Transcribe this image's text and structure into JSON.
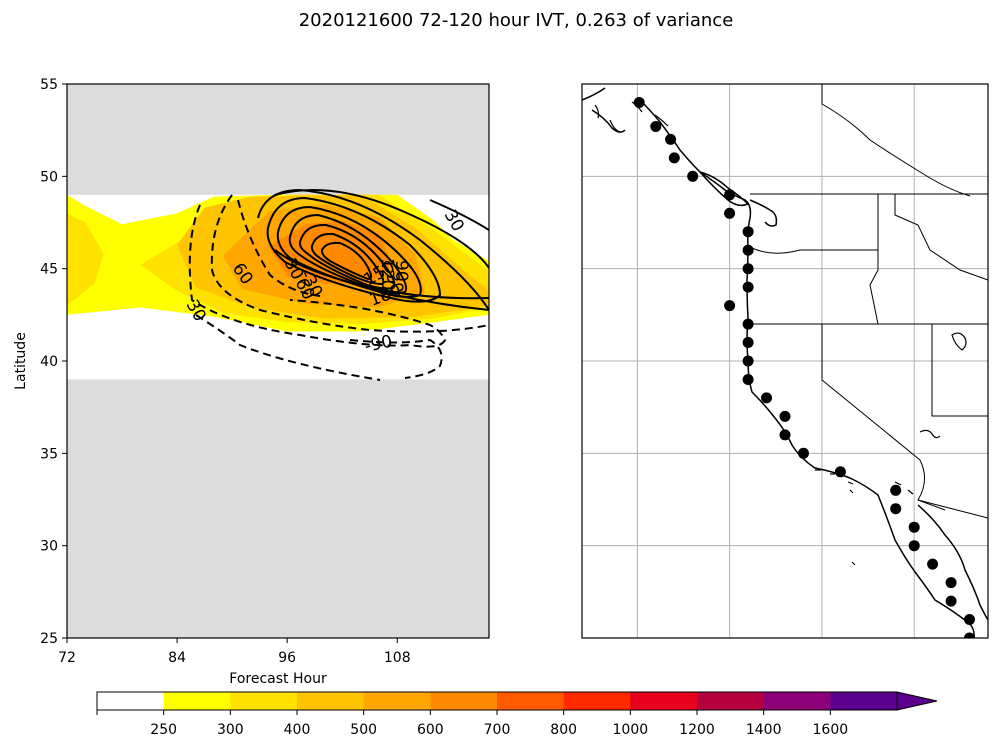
{
  "chart_data": [
    {
      "type": "contour",
      "title": "2020121600 72-120 hour IVT, 0.263 of variance",
      "xlabel": "Forecast Hour",
      "ylabel": "Latitude",
      "xlim": [
        72,
        118
      ],
      "ylim": [
        25,
        55
      ],
      "xticks": [
        72,
        84,
        96,
        108
      ],
      "yticks": [
        25,
        30,
        35,
        40,
        45,
        50,
        55
      ],
      "masked_background": "#dcdcdc",
      "data_band_lat": [
        39,
        49
      ],
      "filled_contours": [
        {
          "level": "250-300",
          "color": "#ffff00",
          "polygon": [
            [
              72,
              49
            ],
            [
              74,
              48.4
            ],
            [
              78,
              47.4
            ],
            [
              84,
              48
            ],
            [
              88,
              48.9
            ],
            [
              95,
              49
            ],
            [
              108,
              49
            ],
            [
              112,
              47.6
            ],
            [
              114,
              46.6
            ],
            [
              118,
              45.4
            ],
            [
              118,
              42.5
            ],
            [
              112,
              42.1
            ],
            [
              104,
              41.6
            ],
            [
              96,
              41.6
            ],
            [
              88,
              42.4
            ],
            [
              80,
              42.9
            ],
            [
              72,
              42.5
            ]
          ]
        },
        {
          "level": "300-400",
          "color": "#ffe100",
          "polygon": [
            [
              72,
              48
            ],
            [
              74,
              47.5
            ],
            [
              76,
              45.8
            ],
            [
              75,
              44.2
            ],
            [
              72,
              43
            ]
          ]
        },
        {
          "level": "300-400",
          "color": "#ffe100",
          "polygon": [
            [
              80,
              45.2
            ],
            [
              84,
              46.4
            ],
            [
              88,
              48.1
            ],
            [
              96,
              49
            ],
            [
              106,
              49
            ],
            [
              112,
              47.1
            ],
            [
              116,
              45.6
            ],
            [
              118,
              44.9
            ],
            [
              118,
              42.9
            ],
            [
              112,
              42.3
            ],
            [
              104,
              42
            ],
            [
              96,
              42.1
            ],
            [
              89,
              42.6
            ],
            [
              84,
              43.8
            ]
          ]
        },
        {
          "level": "400-500",
          "color": "#ffc400",
          "polygon": [
            [
              84,
              46.3
            ],
            [
              87,
              48.3
            ],
            [
              92,
              48.9
            ],
            [
              104,
              49
            ],
            [
              110,
              47.2
            ],
            [
              115,
              45
            ],
            [
              118,
              43.8
            ],
            [
              118,
              43
            ],
            [
              110,
              42.4
            ],
            [
              100,
              42.3
            ],
            [
              92,
              42.9
            ],
            [
              86,
              44
            ]
          ]
        },
        {
          "level": "500-600",
          "color": "#ffa700",
          "polygon": [
            [
              89,
              45.7
            ],
            [
              94,
              48.1
            ],
            [
              100,
              48.5
            ],
            [
              106,
              47.8
            ],
            [
              110,
              45.8
            ],
            [
              111,
              43.7
            ],
            [
              106,
              42.9
            ],
            [
              98,
              43.1
            ],
            [
              91,
              43.9
            ]
          ]
        },
        {
          "level": "600-700",
          "color": "#ff8a00",
          "polygon": [
            [
              94,
              46.2
            ],
            [
              98,
              47.4
            ],
            [
              102,
              47.6
            ],
            [
              106,
              46.9
            ],
            [
              107.5,
              45.2
            ],
            [
              105,
              44.2
            ],
            [
              100,
              44.2
            ],
            [
              96,
              44.6
            ]
          ]
        }
      ],
      "contour_labels": [
        "30",
        "60",
        "30",
        "30",
        "60",
        "90",
        "120",
        "150",
        "180",
        "30",
        "-90",
        "-30"
      ]
    },
    {
      "type": "map",
      "extent_lon": [
        -135,
        -113
      ],
      "extent_lat": [
        25,
        55
      ],
      "gridlines_lon": [
        -132,
        -127,
        -122,
        -117
      ],
      "gridlines_lat": [
        30,
        35,
        40,
        45,
        50
      ],
      "points": [
        {
          "lon": -131.9,
          "lat": 54.0
        },
        {
          "lon": -131.0,
          "lat": 52.7
        },
        {
          "lon": -130.2,
          "lat": 52.0
        },
        {
          "lon": -130.0,
          "lat": 51.0
        },
        {
          "lon": -129.0,
          "lat": 50.0
        },
        {
          "lon": -127.0,
          "lat": 49.0
        },
        {
          "lon": -127.0,
          "lat": 48.0
        },
        {
          "lon": -126.0,
          "lat": 47.0
        },
        {
          "lon": -126.0,
          "lat": 46.0
        },
        {
          "lon": -126.0,
          "lat": 45.0
        },
        {
          "lon": -126.0,
          "lat": 44.0
        },
        {
          "lon": -127.0,
          "lat": 43.0
        },
        {
          "lon": -126.0,
          "lat": 42.0
        },
        {
          "lon": -126.0,
          "lat": 41.0
        },
        {
          "lon": -126.0,
          "lat": 40.0
        },
        {
          "lon": -126.0,
          "lat": 39.0
        },
        {
          "lon": -125.0,
          "lat": 38.0
        },
        {
          "lon": -124.0,
          "lat": 37.0
        },
        {
          "lon": -124.0,
          "lat": 36.0
        },
        {
          "lon": -123.0,
          "lat": 35.0
        },
        {
          "lon": -121.0,
          "lat": 34.0
        },
        {
          "lon": -118.0,
          "lat": 33.0
        },
        {
          "lon": -118.0,
          "lat": 32.0
        },
        {
          "lon": -117.0,
          "lat": 31.0
        },
        {
          "lon": -117.0,
          "lat": 30.0
        },
        {
          "lon": -116.0,
          "lat": 29.0
        },
        {
          "lon": -115.0,
          "lat": 28.0
        },
        {
          "lon": -115.0,
          "lat": 27.0
        },
        {
          "lon": -114.0,
          "lat": 26.0
        },
        {
          "lon": -114.0,
          "lat": 25.0
        }
      ]
    },
    {
      "type": "colorbar",
      "tick_labels": [
        "250",
        "300",
        "400",
        "500",
        "600",
        "700",
        "800",
        "1000",
        "1200",
        "1400",
        "1600"
      ],
      "colors": [
        "#ffffff",
        "#ffff00",
        "#ffe100",
        "#ffc400",
        "#ffa700",
        "#ff8a00",
        "#ff5a00",
        "#ff2a00",
        "#e6001e",
        "#b4003c",
        "#8c0078",
        "#5a008c"
      ],
      "extend": "max"
    }
  ]
}
